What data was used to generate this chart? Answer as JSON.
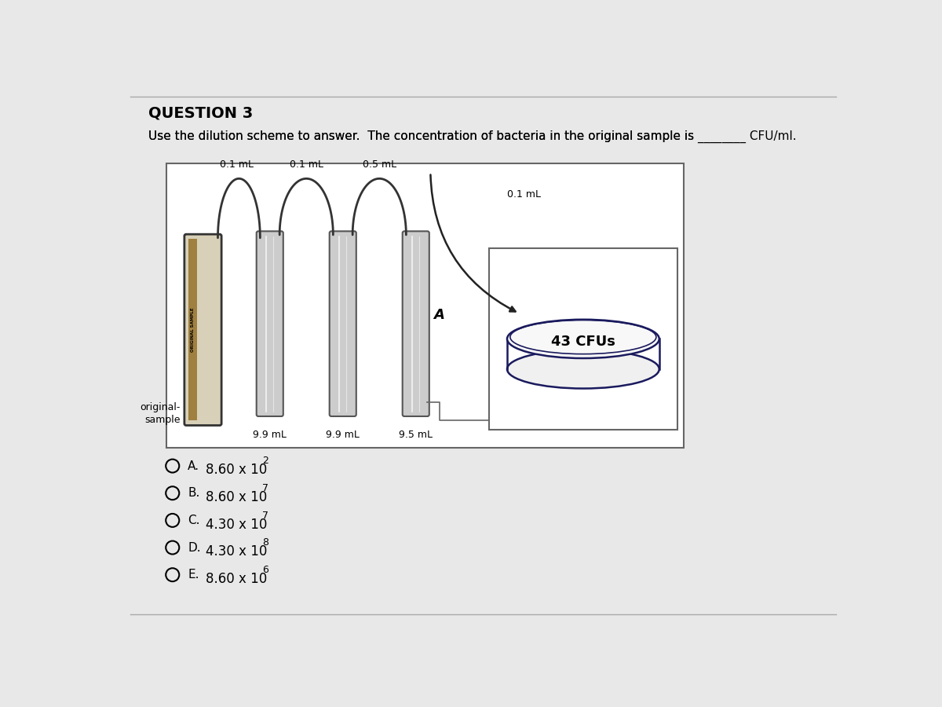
{
  "title": "QUESTION 3",
  "subtitle_pre": "Use the dilution scheme to answer.  The concentration of bacteria in the original sample is ",
  "subtitle_blank": "________",
  "subtitle_post": " CFU/ml.",
  "background_color": "#e8e8e8",
  "panel_bg": "#ffffff",
  "transfer_labels": [
    "0.1 mL",
    "0.1 mL",
    "0.5 mL",
    "0.1 mL"
  ],
  "diluent_labels": [
    "9.9 mL",
    "9.9 mL",
    "9.5 mL"
  ],
  "original_label_line1": "original-",
  "original_label_line2": "sample",
  "plate_label": "43 CFUs",
  "point_A_label": "A",
  "side_label": "ORIGINAL SAMPLE",
  "choices": [
    {
      "letter": "A.",
      "value": "8.60 x 10",
      "exp": "2"
    },
    {
      "letter": "B.",
      "value": "8.60 x 10",
      "exp": "7"
    },
    {
      "letter": "C.",
      "value": "4.30 x 10",
      "exp": "7"
    },
    {
      "letter": "D.",
      "value": "4.30 x 10",
      "exp": "8"
    },
    {
      "letter": "E.",
      "value": "8.60 x 10",
      "exp": "6"
    }
  ],
  "tube_color": "#cccccc",
  "tube_edge": "#555555",
  "arch_color": "#444444",
  "plate_edge": "#1a1a5e",
  "panel_edge": "#666666"
}
